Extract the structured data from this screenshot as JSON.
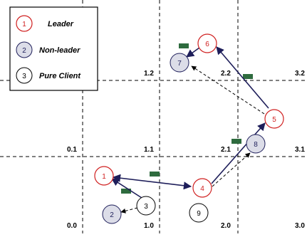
{
  "legend": {
    "items": [
      {
        "id": "1",
        "label": "Leader",
        "kind": "leader"
      },
      {
        "id": "2",
        "label": "Non-leader",
        "kind": "nonleader"
      },
      {
        "id": "3",
        "label": "Pure Client",
        "kind": "client"
      }
    ]
  },
  "cells": [
    {
      "id": "0.0",
      "label": "0.0"
    },
    {
      "id": "1.0",
      "label": "1.0"
    },
    {
      "id": "2.0",
      "label": "2.0"
    },
    {
      "id": "3.0",
      "label": "3.0"
    },
    {
      "id": "0.1",
      "label": "0.1"
    },
    {
      "id": "1.1",
      "label": "1.1"
    },
    {
      "id": "2.1",
      "label": "2.1"
    },
    {
      "id": "3.1",
      "label": "3.1"
    },
    {
      "id": "1.2",
      "label": "1.2"
    },
    {
      "id": "2.2",
      "label": "2.2"
    },
    {
      "id": "3.2",
      "label": "3.2"
    }
  ],
  "nodes": [
    {
      "id": "1",
      "label": "1",
      "kind": "leader"
    },
    {
      "id": "2",
      "label": "2",
      "kind": "nonleader"
    },
    {
      "id": "3",
      "label": "3",
      "kind": "client"
    },
    {
      "id": "4",
      "label": "4",
      "kind": "leader"
    },
    {
      "id": "5",
      "label": "5",
      "kind": "leader"
    },
    {
      "id": "6",
      "label": "6",
      "kind": "leader"
    },
    {
      "id": "7",
      "label": "7",
      "kind": "nonleader"
    },
    {
      "id": "8",
      "label": "8",
      "kind": "nonleader"
    },
    {
      "id": "9",
      "label": "9",
      "kind": "client"
    }
  ],
  "edges": [
    {
      "from": "3",
      "to": "1",
      "style": "solid"
    },
    {
      "from": "3",
      "to": "2",
      "style": "dashed"
    },
    {
      "from": "1",
      "to": "4",
      "style": "solid-bidirectional"
    },
    {
      "from": "4",
      "to": "5",
      "style": "solid"
    },
    {
      "from": "4",
      "to": "8",
      "style": "dashed"
    },
    {
      "from": "5",
      "to": "6",
      "style": "solid"
    },
    {
      "from": "5",
      "to": "7",
      "style": "dashed"
    },
    {
      "from": "6",
      "to": "7",
      "style": "solid"
    }
  ],
  "colors": {
    "leader": "#d02020",
    "nonleader_fill": "#dcdde8",
    "edge": "#1e1e5a",
    "message": "#2e6b3e",
    "grid": "#000000"
  }
}
